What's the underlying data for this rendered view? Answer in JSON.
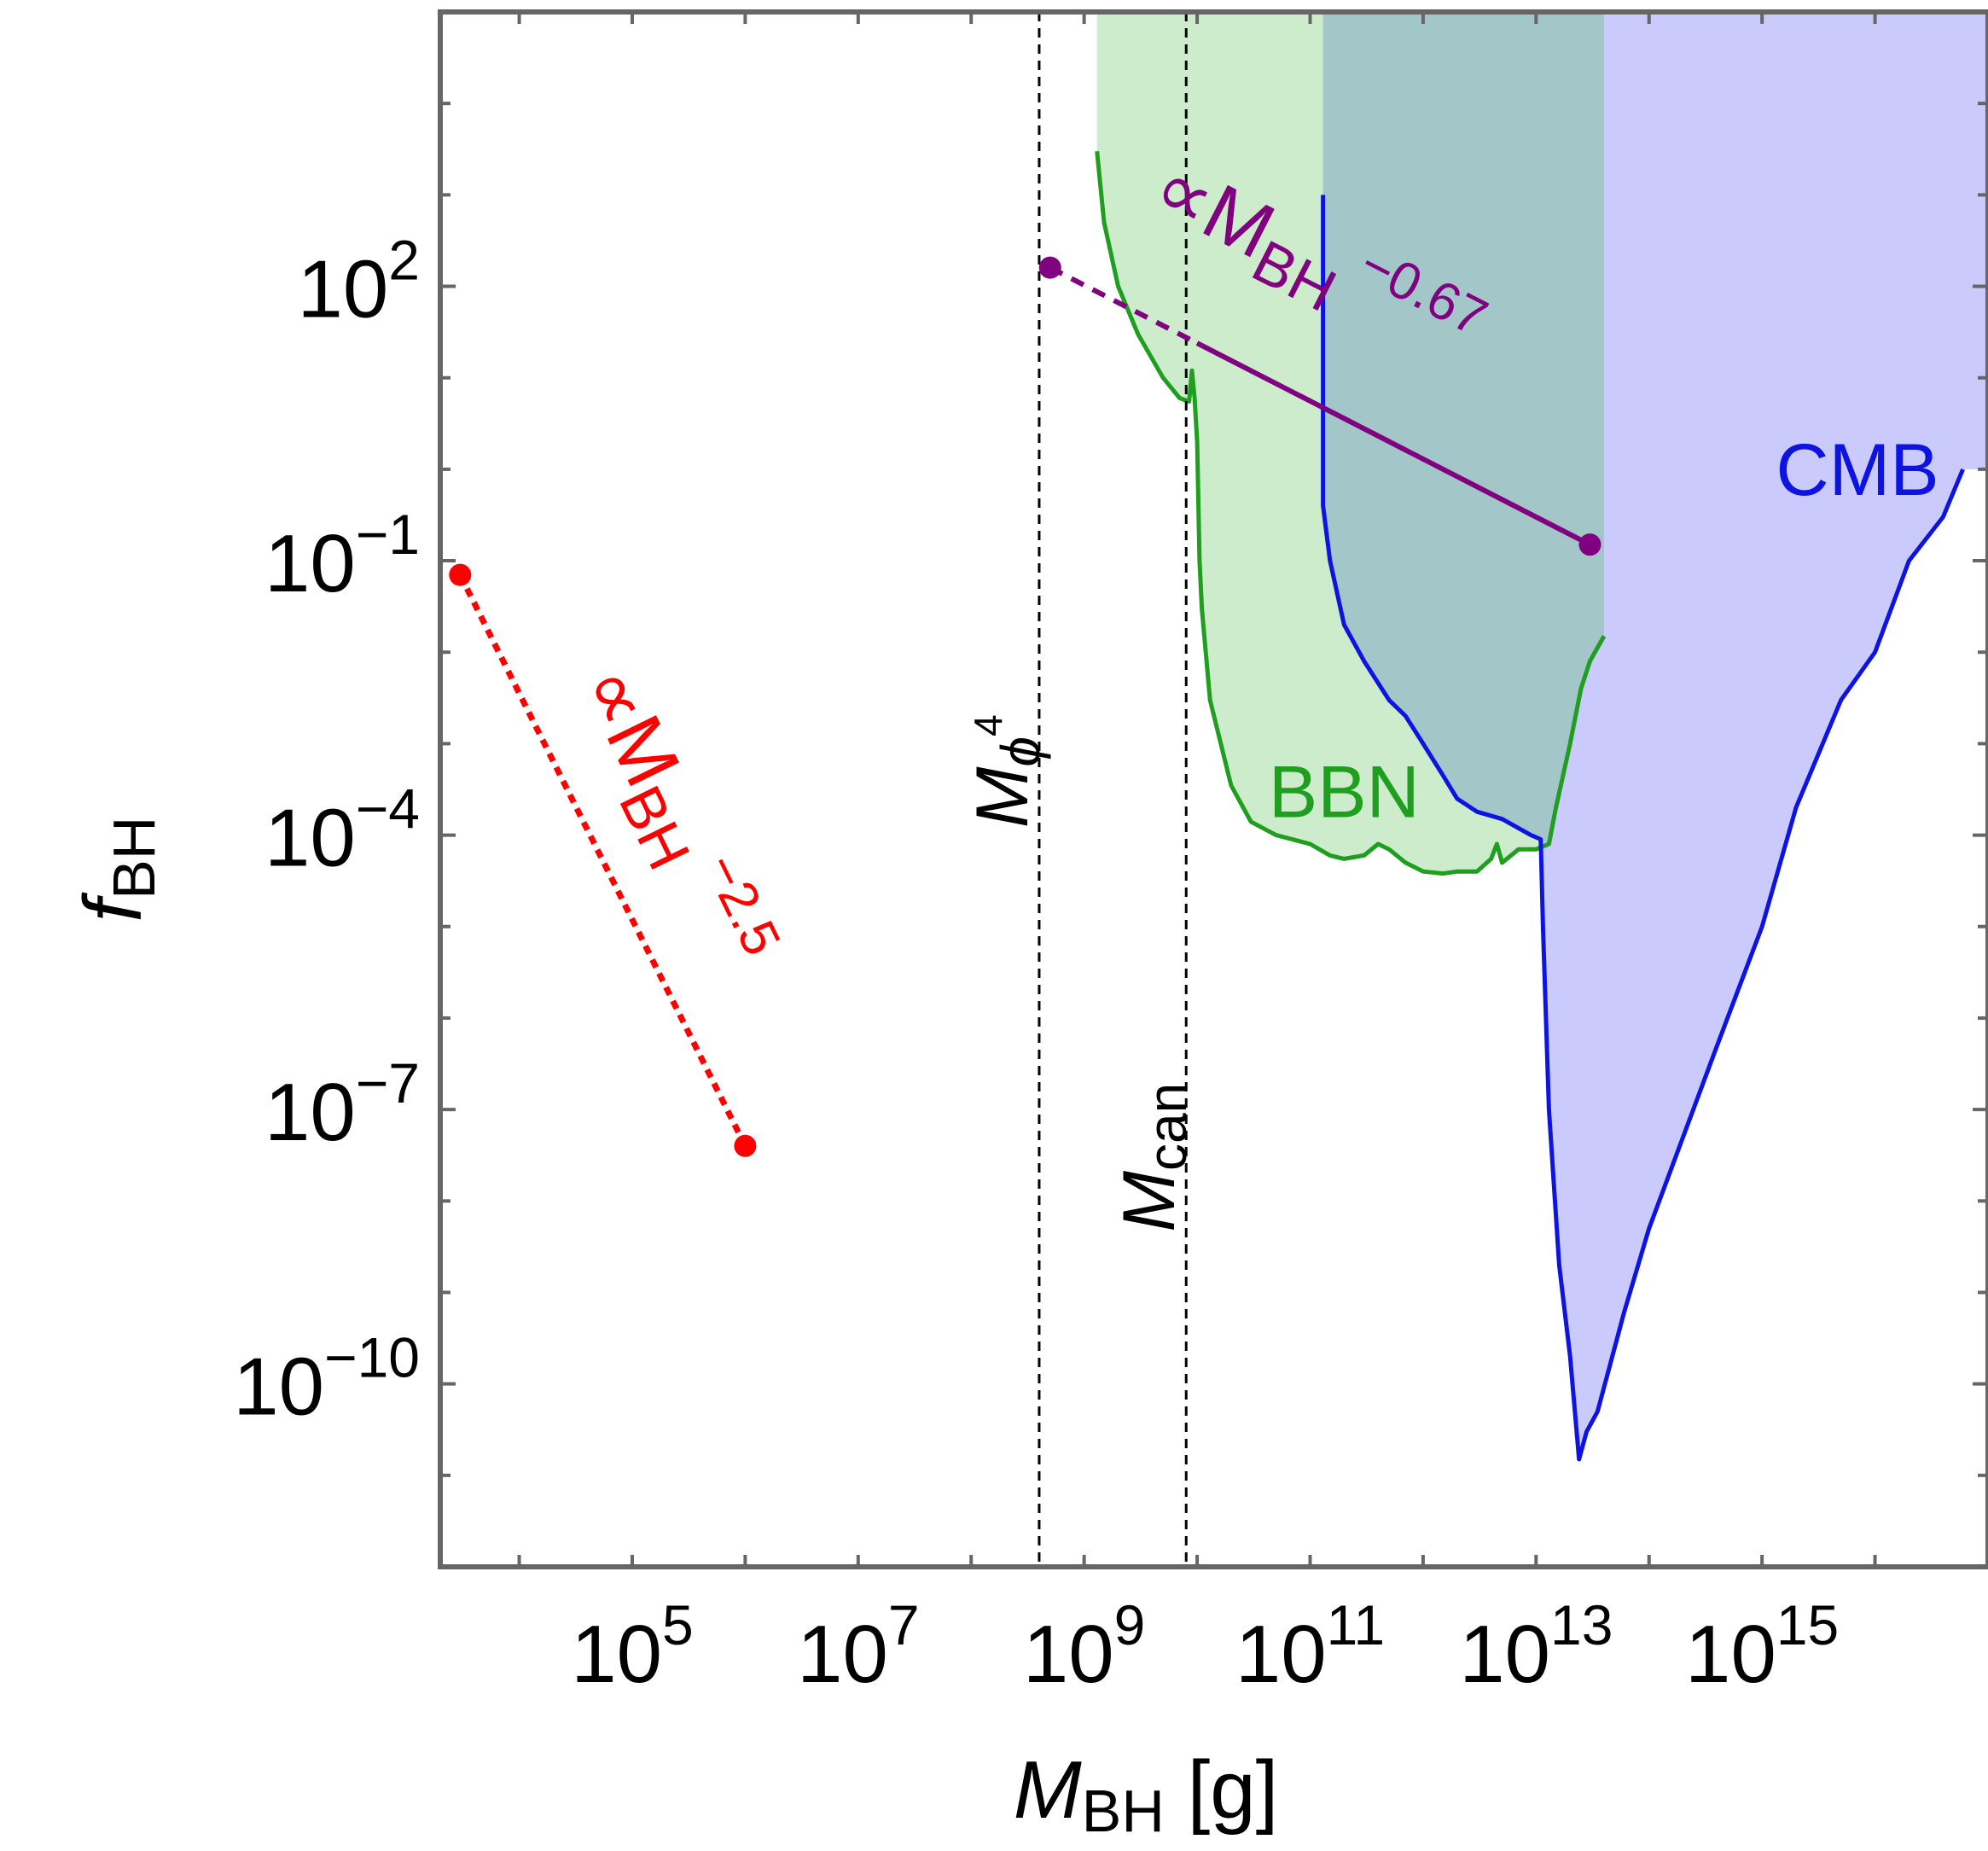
{
  "chart_data": {
    "type": "line",
    "xlabel": {
      "base": "M",
      "sub": "BH",
      "unit": " [g]"
    },
    "ylabel": {
      "base": "f",
      "sub": "BH"
    },
    "xscale": "log",
    "yscale": "log",
    "xlim": [
      2000.0,
      1e+17
    ],
    "ylim": [
      1e-12,
      100000.0
    ],
    "x_ticks": [
      {
        "value": 100000.0,
        "label_base": "10",
        "label_exp": "5"
      },
      {
        "value": 10000000.0,
        "label_base": "10",
        "label_exp": "7"
      },
      {
        "value": 1000000000.0,
        "label_base": "10",
        "label_exp": "9"
      },
      {
        "value": 100000000000.0,
        "label_base": "10",
        "label_exp": "11"
      },
      {
        "value": 10000000000000.0,
        "label_base": "10",
        "label_exp": "13"
      },
      {
        "value": 1000000000000000.0,
        "label_base": "10",
        "label_exp": "15"
      }
    ],
    "y_ticks": [
      {
        "value": 100,
        "label_base": "10",
        "label_exp": "2"
      },
      {
        "value": 0.1,
        "label_base": "10",
        "label_exp": "−1"
      },
      {
        "value": 0.0001,
        "label_base": "10",
        "label_exp": "−4"
      },
      {
        "value": 1e-07,
        "label_base": "10",
        "label_exp": "−7"
      },
      {
        "value": 1e-10,
        "label_base": "10",
        "label_exp": "−10"
      }
    ],
    "grid": false,
    "regions": [
      {
        "name": "BBN",
        "label": "BBN",
        "label_at": [
          200000000000.0,
          0.0003
        ],
        "fill": "#cdeccc",
        "line": "#1f9e1f",
        "fill_top": 100000.0,
        "boundary": [
          [
            1300000000.0,
            3000
          ],
          [
            1500000000.0,
            500
          ],
          [
            2000000000.0,
            100
          ],
          [
            3000000000.0,
            30
          ],
          [
            5000000000.0,
            10
          ],
          [
            7000000000.0,
            6
          ],
          [
            8500000000.0,
            5.5
          ],
          [
            9000000000.0,
            12
          ],
          [
            9500000000.0,
            6
          ],
          [
            10000000000.0,
            2
          ],
          [
            10500000000.0,
            0.1
          ],
          [
            11000000000.0,
            0.03
          ],
          [
            13000000000.0,
            0.003
          ],
          [
            20000000000.0,
            0.00035
          ],
          [
            30000000000.0,
            0.00014
          ],
          [
            50000000000.0,
            0.0001
          ],
          [
            100000000000.0,
            8e-05
          ],
          [
            150000000000.0,
            6e-05
          ],
          [
            200000000000.0,
            5.5e-05
          ],
          [
            300000000000.0,
            6e-05
          ],
          [
            400000000000.0,
            8e-05
          ],
          [
            500000000000.0,
            7e-05
          ],
          [
            700000000000.0,
            5e-05
          ],
          [
            1000000000000.0,
            4e-05
          ],
          [
            1500000000000.0,
            3.8e-05
          ],
          [
            2000000000000.0,
            4e-05
          ],
          [
            3000000000000.0,
            4e-05
          ],
          [
            4000000000000.0,
            5.5e-05
          ],
          [
            4500000000000.0,
            8e-05
          ],
          [
            5000000000000.0,
            5e-05
          ],
          [
            7000000000000.0,
            7e-05
          ],
          [
            10000000000000.0,
            7e-05
          ],
          [
            13000000000000.0,
            8e-05
          ],
          [
            15000000000000.0,
            0.0002
          ],
          [
            20000000000000.0,
            0.001
          ],
          [
            25000000000000.0,
            0.004
          ],
          [
            30000000000000.0,
            0.008
          ],
          [
            40000000000000.0,
            0.015
          ]
        ]
      },
      {
        "name": "CMB",
        "label": "CMB",
        "label_at": [
          7000000000000000.0,
          1.0
        ],
        "fill": "#cacafc",
        "line": "#0e14e0",
        "fill_top": 100000.0,
        "top_fill_to_right": 1e+17,
        "boundary": [
          [
            130000000000.0,
            1000
          ],
          [
            130000000000.0,
            0.4
          ],
          [
            150000000000.0,
            0.1
          ],
          [
            200000000000.0,
            0.02
          ],
          [
            300000000000.0,
            0.008
          ],
          [
            500000000000.0,
            0.003
          ],
          [
            700000000000.0,
            0.002
          ],
          [
            1000000000000.0,
            0.001
          ],
          [
            1500000000000.0,
            0.00045
          ],
          [
            2000000000000.0,
            0.00025
          ],
          [
            3000000000000.0,
            0.00018
          ],
          [
            5000000000000.0,
            0.00015
          ],
          [
            9000000000000.0,
            0.0001
          ],
          [
            11000000000000.0,
            9e-05
          ],
          [
            11500000000000.0,
            1e-05
          ],
          [
            13000000000000.0,
            1e-07
          ],
          [
            16000000000000.0,
            2e-09
          ],
          [
            20000000000000.0,
            2e-10
          ],
          [
            24000000000000.0,
            1.5e-11
          ],
          [
            28000000000000.0,
            3e-11
          ],
          [
            35000000000000.0,
            5e-11
          ],
          [
            60000000000000.0,
            6e-10
          ],
          [
            100000000000000.0,
            5e-09
          ],
          [
            200000000000000.0,
            5e-08
          ],
          [
            400000000000000.0,
            5e-07
          ],
          [
            1000000000000000.0,
            1e-05
          ],
          [
            2000000000000000.0,
            0.0002
          ],
          [
            5000000000000000.0,
            0.003
          ],
          [
            1e+16,
            0.01
          ],
          [
            2e+16,
            0.1
          ],
          [
            4e+16,
            0.3
          ],
          [
            6e+16,
            1.0
          ]
        ]
      }
    ],
    "overlap_fill": "#a3c6c9",
    "overlap_x": [
      130000000000.0,
      40000000000000.0
    ],
    "scalings": [
      {
        "name": "red",
        "color": "#ff0000",
        "style": "dotted",
        "points": [
          [
            3000,
            0.07
          ],
          [
            1000000.0,
            4e-08
          ]
        ],
        "label_base": "∝M",
        "label_sub": "BH",
        "label_exp": "−2.5"
      },
      {
        "name": "purple",
        "color": "#800080",
        "points": [
          [
            500000000.0,
            160
          ],
          [
            30000000000000.0,
            0.15
          ]
        ],
        "dashed_until": 10000000000.0,
        "label_base": "∝M",
        "label_sub": "BH",
        "label_exp": "−0.67"
      }
    ],
    "vlines": [
      {
        "x": 400000000.0,
        "label_base": "M",
        "label_sub": "ϕ",
        "label_exp": "4",
        "label_y": 0.0005
      },
      {
        "x": 8000000000.0,
        "label_base": "M",
        "label_sub": "can",
        "label_y": 3e-08
      }
    ]
  }
}
